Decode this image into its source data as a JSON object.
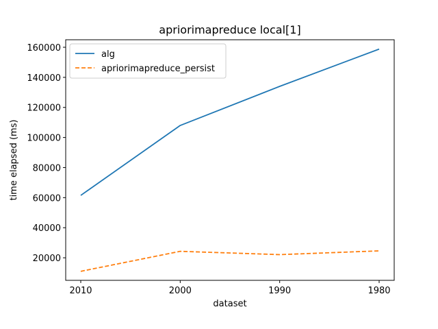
{
  "chart_data": {
    "type": "line",
    "title": "apriorimapreduce local[1]",
    "xlabel": "dataset",
    "ylabel": "time elapsed (ms)",
    "categories": [
      "2010",
      "2000",
      "1990",
      "1980"
    ],
    "ylim": [
      5000,
      165000
    ],
    "yticks": [
      20000,
      40000,
      60000,
      80000,
      100000,
      120000,
      140000,
      160000
    ],
    "ytick_labels": [
      "20000",
      "40000",
      "60000",
      "80000",
      "100000",
      "120000",
      "140000",
      "160000"
    ],
    "grid": false,
    "legend_position": "top-left",
    "series": [
      {
        "name": "alg",
        "values": [
          61500,
          108000,
          134000,
          158800
        ],
        "color": "#1f77b4",
        "style": "solid"
      },
      {
        "name": "apriorimapreduce_persist",
        "values": [
          11000,
          24300,
          22100,
          24600
        ],
        "color": "#ff7f0e",
        "style": "dashed"
      }
    ]
  }
}
